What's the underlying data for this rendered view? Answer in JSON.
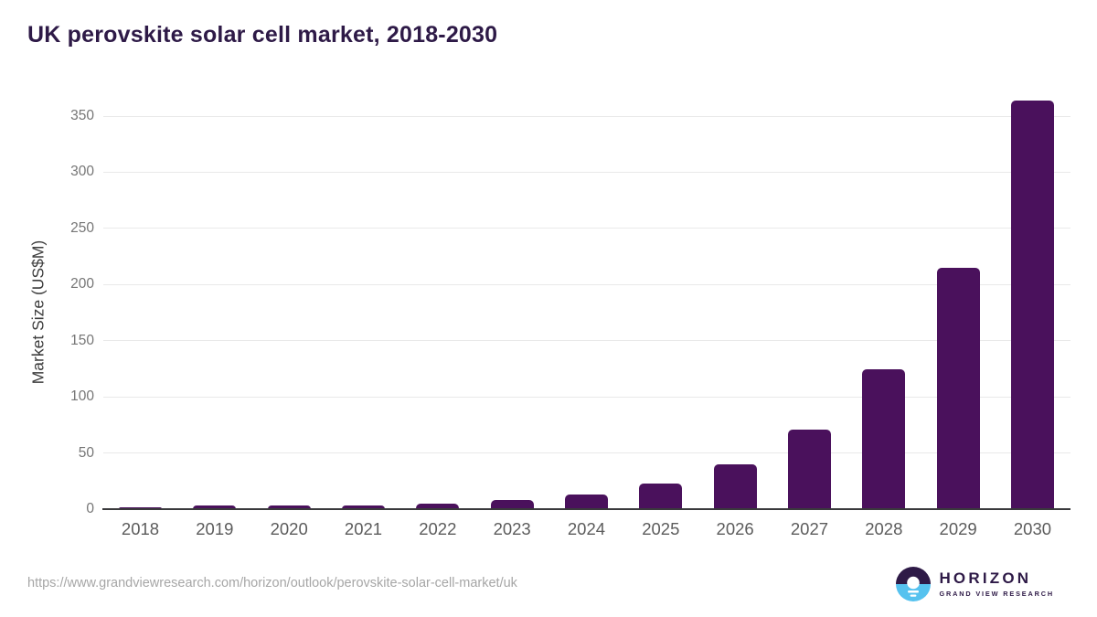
{
  "chart_data": {
    "type": "bar",
    "title": "UK perovskite solar cell market, 2018-2030",
    "xlabel": "",
    "ylabel": "Market Size (US$M)",
    "categories": [
      "2018",
      "2019",
      "2020",
      "2021",
      "2022",
      "2023",
      "2024",
      "2025",
      "2026",
      "2027",
      "2028",
      "2029",
      "2030"
    ],
    "values": [
      1.6,
      3.2,
      3.3,
      3.0,
      4.8,
      7.9,
      13.0,
      22.9,
      39.8,
      70.9,
      124.4,
      214.9,
      364.2
    ],
    "ylim": [
      0,
      350
    ],
    "yticks": [
      0,
      50,
      100,
      150,
      200,
      250,
      300,
      350
    ],
    "grid": true,
    "legend": "none",
    "bar_color": "#4A115C"
  },
  "footer": {
    "source_url": "https://www.grandviewresearch.com/horizon/outlook/perovskite-solar-cell-market/uk",
    "logo": {
      "name": "HORIZON",
      "subtitle": "GRAND VIEW RESEARCH",
      "purple": "#2E1A47",
      "blue": "#56C2EF"
    }
  }
}
